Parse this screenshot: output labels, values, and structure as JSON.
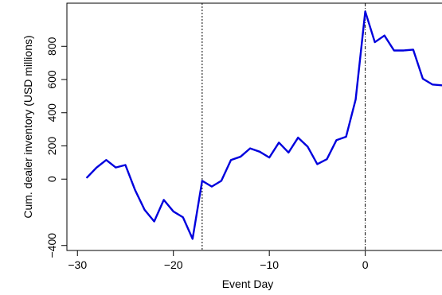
{
  "chart_data": {
    "type": "line",
    "title": "",
    "xlabel": "Event Day",
    "ylabel": "Cum. dealer inventory (USD millions)",
    "xlim": [
      -31.1,
      8
    ],
    "ylim": [
      -430,
      1060
    ],
    "xticks": [
      -30,
      -20,
      -10,
      0
    ],
    "xtick_labels": [
      "−30",
      "−20",
      "−10",
      "0"
    ],
    "yticks": [
      -400,
      0,
      200,
      400,
      600,
      800
    ],
    "ytick_labels": [
      "−400",
      "0",
      "200",
      "400",
      "600",
      "800"
    ],
    "grid": false,
    "vlines": [
      {
        "x": -17,
        "style": "dotted"
      },
      {
        "x": 0,
        "style": "dashdot"
      }
    ],
    "series": [
      {
        "color": "#0000dd",
        "x": [
          -29,
          -28,
          -27,
          -26,
          -25,
          -24,
          -23,
          -22,
          -21,
          -20,
          -19,
          -18,
          -17,
          -16,
          -15,
          -14,
          -13,
          -12,
          -11,
          -10,
          -9,
          -8,
          -7,
          -6,
          -5,
          -4,
          -3,
          -2,
          -1,
          0,
          1,
          2,
          3,
          4,
          5,
          6,
          7,
          8
        ],
        "y": [
          10,
          70,
          115,
          70,
          85,
          -65,
          -185,
          -255,
          -125,
          -195,
          -230,
          -360,
          -10,
          -45,
          -10,
          115,
          135,
          185,
          165,
          130,
          220,
          160,
          250,
          195,
          90,
          120,
          235,
          255,
          480,
          1010,
          825,
          865,
          775,
          775,
          780,
          605,
          570,
          565
        ]
      }
    ]
  }
}
